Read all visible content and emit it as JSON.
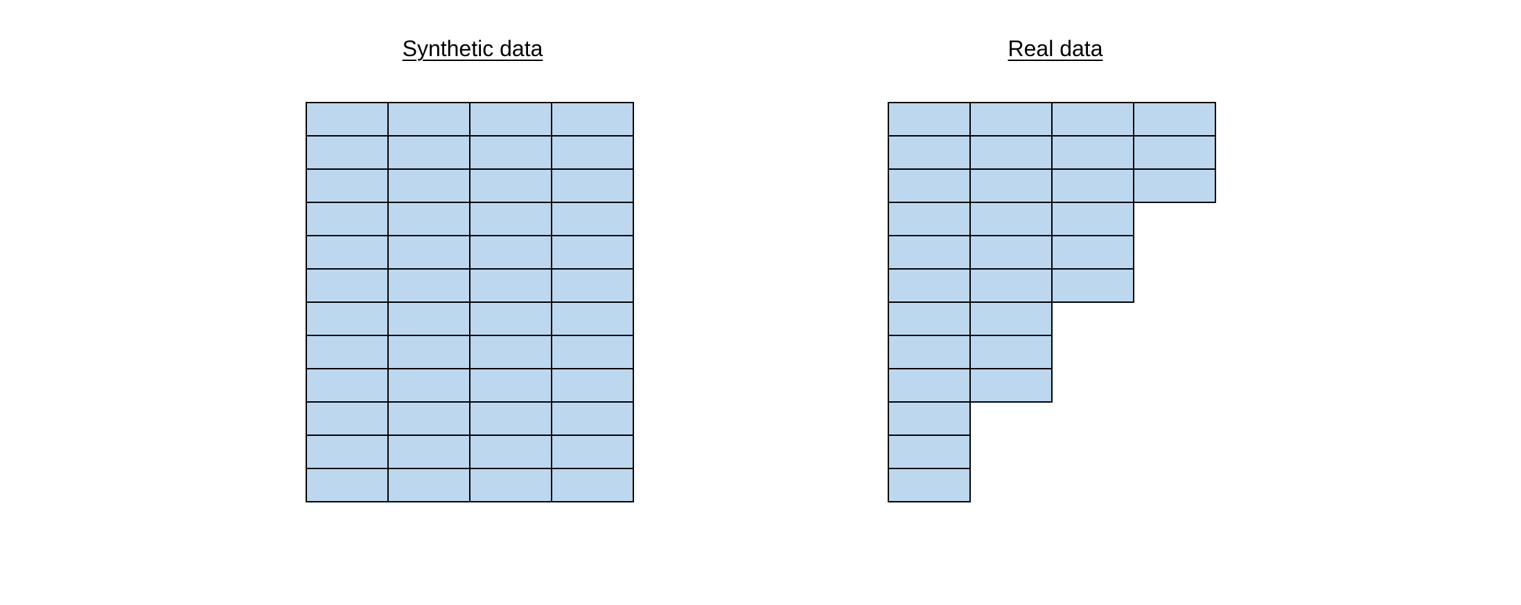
{
  "colors": {
    "cell_fill": "#bdd7ee",
    "cell_border": "#000000",
    "background": "#ffffff"
  },
  "panels": {
    "synthetic": {
      "title": "Synthetic data",
      "rows": 12,
      "columns": 4,
      "filled_cells_per_row": [
        4,
        4,
        4,
        4,
        4,
        4,
        4,
        4,
        4,
        4,
        4,
        4
      ]
    },
    "real": {
      "title": "Real data",
      "rows": 12,
      "columns": 4,
      "filled_cells_per_row": [
        4,
        4,
        4,
        3,
        3,
        3,
        2,
        2,
        2,
        1,
        1,
        1
      ]
    }
  }
}
